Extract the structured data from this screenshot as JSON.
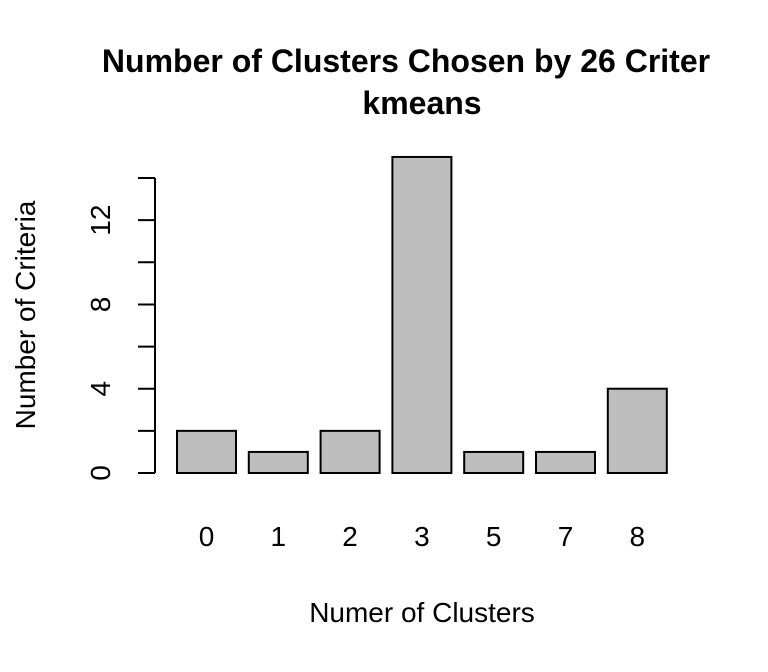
{
  "chart_data": {
    "type": "bar",
    "title": "Number of Clusters Chosen by 26 Criter",
    "subtitle": "kmeans",
    "xlabel": "Numer of Clusters",
    "ylabel": "Number of Criteria",
    "categories": [
      "0",
      "1",
      "2",
      "3",
      "5",
      "7",
      "8"
    ],
    "values": [
      2,
      1,
      2,
      15,
      1,
      1,
      4
    ],
    "yticks": [
      0,
      4,
      8,
      12
    ],
    "ylim": [
      0,
      14
    ],
    "bar_color": "#BEBEBE",
    "border_color": "#000000",
    "grid": false
  }
}
